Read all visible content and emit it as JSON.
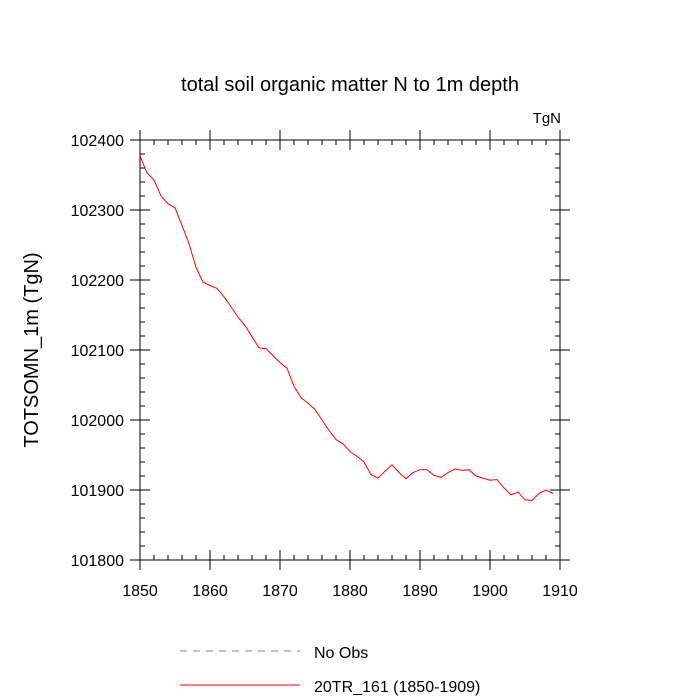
{
  "chart_data": {
    "type": "line",
    "title": "total soil organic matter N to 1m depth",
    "units_label": "TgN",
    "xlabel": "",
    "ylabel": "TOTSOMN_1m  (TgN)",
    "xlim": [
      1850,
      1910
    ],
    "ylim": [
      101800,
      102400
    ],
    "x_ticks": [
      1850,
      1860,
      1870,
      1880,
      1890,
      1900,
      1910
    ],
    "y_ticks": [
      101800,
      101900,
      102000,
      102100,
      102200,
      102300,
      102400
    ],
    "legend": [
      {
        "label": "No Obs",
        "color": "#7777ee",
        "style": "dashed"
      },
      {
        "label": "20TR_161 (1850-1909)",
        "color": "#ff0000",
        "style": "solid"
      }
    ],
    "series": [
      {
        "name": "20TR_161 (1850-1909)",
        "color": "#ff0000",
        "x": [
          1850,
          1851,
          1852,
          1853,
          1854,
          1855,
          1856,
          1857,
          1858,
          1859,
          1860,
          1861,
          1862,
          1863,
          1864,
          1865,
          1866,
          1867,
          1868,
          1869,
          1870,
          1871,
          1872,
          1873,
          1874,
          1875,
          1876,
          1877,
          1878,
          1879,
          1880,
          1881,
          1882,
          1883,
          1884,
          1885,
          1886,
          1887,
          1888,
          1889,
          1890,
          1891,
          1892,
          1893,
          1894,
          1895,
          1896,
          1897,
          1898,
          1899,
          1900,
          1901,
          1902,
          1903,
          1904,
          1905,
          1906,
          1907,
          1908,
          1909
        ],
        "values": [
          102377,
          102353,
          102343,
          102320,
          102309,
          102303,
          102278,
          102252,
          102218,
          102197,
          102192,
          102188,
          102176,
          102162,
          102147,
          102135,
          102119,
          102103,
          102102,
          102092,
          102082,
          102074,
          102048,
          102032,
          102024,
          102015,
          102000,
          101985,
          101972,
          101966,
          101955,
          101948,
          101940,
          101922,
          101917,
          101927,
          101936,
          101925,
          101916,
          101925,
          101929,
          101929,
          101921,
          101918,
          101925,
          101930,
          101928,
          101929,
          101920,
          101917,
          101914,
          101915,
          101903,
          101893,
          101897,
          101886,
          101885,
          101895,
          101900,
          101895
        ]
      }
    ]
  }
}
